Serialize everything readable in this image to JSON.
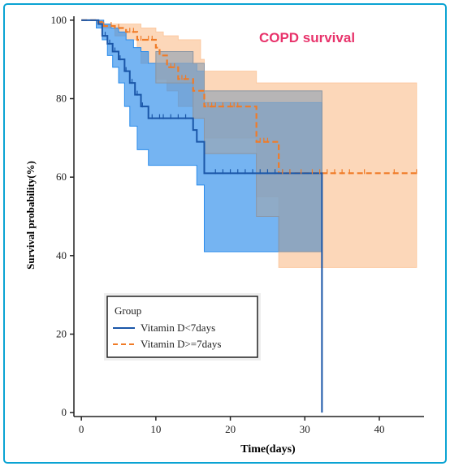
{
  "chart_data": {
    "type": "line",
    "title": "COPD survival",
    "xlabel": "Time(days)",
    "ylabel": "Survival probability(%)",
    "xlim": [
      -1,
      46
    ],
    "ylim": [
      -1,
      101
    ],
    "xticks": [
      0,
      10,
      20,
      30,
      40
    ],
    "yticks": [
      0,
      20,
      40,
      60,
      80,
      100
    ],
    "legend": {
      "title": "Group",
      "position": "bottom-left",
      "entries": [
        "Vitamin D<7days",
        "Vitamin D>=7days"
      ]
    },
    "colors": {
      "frame": "#0AA3D3",
      "title": "#E8336B",
      "series_0": "#1A56A8",
      "series_0_band": "#2B8CEB",
      "series_1": "#F07B27",
      "series_1_band": "#FBC9A1",
      "overlap_band": "#9AA7B5"
    },
    "series": [
      {
        "name": "Vitamin D<7days",
        "line_style": "solid",
        "steps": [
          [
            0,
            100
          ],
          [
            2.3,
            99
          ],
          [
            2.8,
            96
          ],
          [
            3.5,
            94
          ],
          [
            4.2,
            92
          ],
          [
            5,
            90
          ],
          [
            5.8,
            87
          ],
          [
            6.5,
            84
          ],
          [
            7.2,
            81
          ],
          [
            8,
            78
          ],
          [
            9,
            75
          ],
          [
            15,
            72
          ],
          [
            15.5,
            69
          ],
          [
            16.5,
            61
          ],
          [
            32.3,
            61
          ],
          [
            32.3,
            0
          ]
        ],
        "censored_x": [
          3.2,
          3.8,
          4.5,
          5.2,
          6,
          6.8,
          7.5,
          8.2,
          9.5,
          10.5,
          11,
          12,
          13,
          14,
          18,
          19,
          20,
          21,
          22,
          23,
          24,
          25,
          26,
          27,
          28
        ],
        "ci_upper": [
          [
            0,
            100
          ],
          [
            2,
            100
          ],
          [
            3,
            99
          ],
          [
            4,
            98
          ],
          [
            5,
            97
          ],
          [
            6,
            95
          ],
          [
            7,
            93
          ],
          [
            8,
            92
          ],
          [
            9,
            89
          ],
          [
            15,
            89
          ],
          [
            15.5,
            87
          ],
          [
            16.5,
            79
          ],
          [
            32.3,
            79
          ]
        ],
        "ci_lower": [
          [
            0,
            100
          ],
          [
            2,
            98
          ],
          [
            2.8,
            95
          ],
          [
            3.5,
            91
          ],
          [
            4.2,
            88
          ],
          [
            5,
            84
          ],
          [
            5.8,
            78
          ],
          [
            6.5,
            73
          ],
          [
            7.5,
            67
          ],
          [
            9,
            63
          ],
          [
            15,
            63
          ],
          [
            15.5,
            58
          ],
          [
            16.5,
            41
          ],
          [
            26.5,
            41
          ]
        ]
      },
      {
        "name": "Vitamin D>=7days",
        "line_style": "dashed",
        "steps": [
          [
            0,
            100
          ],
          [
            2,
            99.5
          ],
          [
            3,
            98.5
          ],
          [
            4.5,
            98
          ],
          [
            6,
            97
          ],
          [
            7.5,
            95
          ],
          [
            10,
            93
          ],
          [
            10.5,
            91
          ],
          [
            11.5,
            88
          ],
          [
            13,
            85
          ],
          [
            15,
            82
          ],
          [
            16.5,
            78
          ],
          [
            23.5,
            69
          ],
          [
            26.5,
            61
          ],
          [
            45,
            61
          ]
        ],
        "censored_x": [
          3,
          4,
          5,
          6.5,
          7,
          8,
          9,
          9.5,
          12,
          12.5,
          13.5,
          14,
          17,
          17.5,
          18,
          19,
          20,
          20.5,
          21,
          24,
          24.5,
          25,
          27,
          28,
          29.5,
          31,
          32,
          33,
          34,
          35,
          36,
          38,
          42,
          45
        ],
        "ci_upper": [
          [
            0,
            100
          ],
          [
            2,
            100
          ],
          [
            3,
            99
          ],
          [
            5,
            99
          ],
          [
            7,
            99
          ],
          [
            8,
            98
          ],
          [
            10,
            97
          ],
          [
            11,
            96
          ],
          [
            13,
            95
          ],
          [
            16,
            90
          ],
          [
            16.5,
            87
          ],
          [
            23.5,
            84
          ],
          [
            26.5,
            84
          ],
          [
            45,
            84
          ]
        ],
        "ci_lower": [
          [
            0,
            100
          ],
          [
            2,
            99
          ],
          [
            3,
            98
          ],
          [
            4.5,
            96
          ],
          [
            6,
            95
          ],
          [
            7.5,
            93
          ],
          [
            8,
            89
          ],
          [
            10,
            85
          ],
          [
            11.5,
            82
          ],
          [
            13,
            78
          ],
          [
            15,
            75
          ],
          [
            16.5,
            70
          ],
          [
            23.5,
            55
          ],
          [
            26.5,
            37
          ],
          [
            45,
            37
          ]
        ]
      }
    ],
    "overlap_band": {
      "upper": [
        [
          10,
          92
        ],
        [
          15,
          89
        ],
        [
          16.5,
          82
        ],
        [
          32.3,
          82
        ]
      ],
      "lower": [
        [
          10,
          84
        ],
        [
          15,
          75
        ],
        [
          16.5,
          66
        ],
        [
          23.5,
          50
        ],
        [
          26.5,
          41
        ],
        [
          32.3,
          41
        ]
      ]
    }
  }
}
